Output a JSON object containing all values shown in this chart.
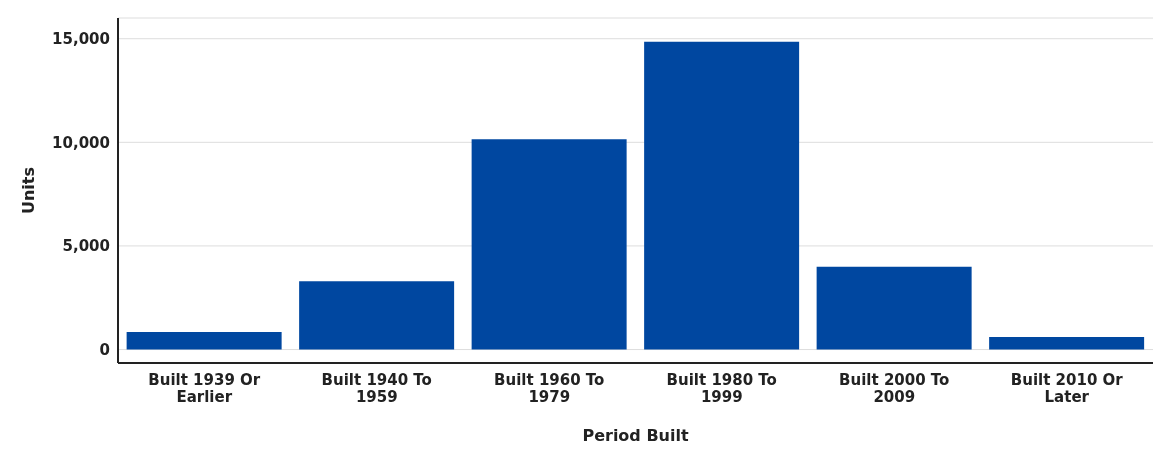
{
  "chart_data": {
    "type": "bar",
    "xlabel": "Period Built",
    "ylabel": "Units",
    "categories": [
      "Built 1939 Or Earlier",
      "Built 1940 To 1959",
      "Built 1960 To 1979",
      "Built 1980 To 1999",
      "Built 2000 To 2009",
      "Built 2010 Or Later"
    ],
    "values": [
      850,
      3300,
      10150,
      14850,
      4000,
      600
    ],
    "color": "#0047a0",
    "ylim": [
      -650,
      16000
    ],
    "yticks": [
      {
        "value": 0,
        "label": "0"
      },
      {
        "value": 5000,
        "label": "5,000"
      },
      {
        "value": 10000,
        "label": "10,000"
      },
      {
        "value": 15000,
        "label": "15,000"
      }
    ],
    "grid": "y"
  }
}
